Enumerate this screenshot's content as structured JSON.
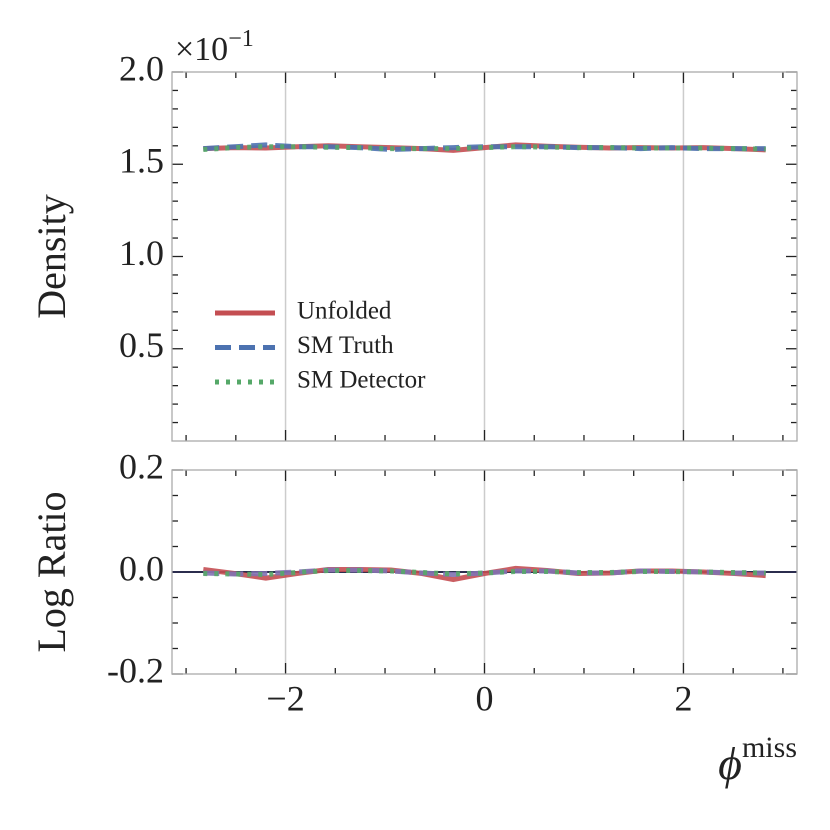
{
  "chart_data": [
    {
      "type": "line",
      "ylabel": "Density",
      "y_offset_text": {
        "base": "×10",
        "exponent": "−1"
      },
      "xlim": [
        -3.1416,
        3.1416
      ],
      "xticks": [
        {
          "value": -2,
          "label": "−2"
        },
        0,
        2
      ],
      "xminorticks": [
        -3,
        -2.5,
        -1.5,
        -1,
        -0.5,
        0.5,
        1,
        1.5,
        2.5,
        3
      ],
      "ylim": [
        0,
        2.0
      ],
      "yticks": [
        0.5,
        {
          "value": 1,
          "label": "1.0"
        },
        1.5,
        {
          "value": 2,
          "label": "2.0"
        }
      ],
      "yminorticks": [
        0.1,
        0.2,
        0.3,
        0.4,
        0.6,
        0.7,
        0.8,
        0.9,
        1.1,
        1.2,
        1.3,
        1.4,
        1.6,
        1.7,
        1.8,
        1.9
      ],
      "grid": "x",
      "legend": "lower left",
      "x": [
        -2.827,
        -2.513,
        -2.199,
        -1.885,
        -1.571,
        -1.257,
        -0.942,
        -0.628,
        -0.314,
        0,
        0.314,
        0.628,
        0.942,
        1.257,
        1.571,
        1.885,
        2.199,
        2.513,
        2.827
      ],
      "series": [
        {
          "name": "Unfolded",
          "color": "#c44e52",
          "style": "solid",
          "values": [
            1.585,
            1.59,
            1.588,
            1.595,
            1.6,
            1.595,
            1.59,
            1.585,
            1.575,
            1.59,
            1.605,
            1.598,
            1.592,
            1.588,
            1.59,
            1.588,
            1.59,
            1.585,
            1.578
          ]
        },
        {
          "name": "SM Truth",
          "color": "#4c72b0",
          "style": "dashed",
          "values": [
            1.585,
            1.595,
            1.605,
            1.595,
            1.595,
            1.59,
            1.58,
            1.585,
            1.59,
            1.595,
            1.595,
            1.595,
            1.59,
            1.59,
            1.585,
            1.59,
            1.585,
            1.585,
            1.585
          ]
        },
        {
          "name": "SM Detector",
          "color": "#55a868",
          "style": "dotted",
          "values": [
            1.58,
            1.59,
            1.595,
            1.595,
            1.592,
            1.59,
            1.585,
            1.585,
            1.585,
            1.59,
            1.595,
            1.593,
            1.59,
            1.59,
            1.588,
            1.588,
            1.588,
            1.585,
            1.582
          ]
        }
      ]
    },
    {
      "type": "line",
      "ylabel": "Log Ratio",
      "xlabel": {
        "symbol": "ϕ",
        "superscript": "miss"
      },
      "xlim": [
        -3.1416,
        3.1416
      ],
      "xticks": [
        {
          "value": -2,
          "label": "−2"
        },
        0,
        2
      ],
      "xminorticks": [
        -3,
        -2.5,
        -1.5,
        -1,
        -0.5,
        0.5,
        1,
        1.5,
        2.5,
        3
      ],
      "ylim": [
        -0.2,
        0.2
      ],
      "yticks": [
        -0.2,
        {
          "value": 0,
          "label": "0.0"
        },
        0.2
      ],
      "yminorticks": [
        -0.15,
        -0.1,
        -0.05,
        0.05,
        0.1,
        0.15
      ],
      "grid": "x",
      "hline": 0,
      "hline_color": "#2b2d4e",
      "x": [
        -2.827,
        -2.513,
        -2.199,
        -1.885,
        -1.571,
        -1.257,
        -0.942,
        -0.628,
        -0.314,
        0,
        0.314,
        0.628,
        0.942,
        1.257,
        1.571,
        1.885,
        2.199,
        2.513,
        2.827
      ],
      "series": [
        {
          "color": "#c44e52",
          "style": "solid",
          "values": [
            0.005,
            -0.003,
            -0.012,
            -0.003,
            0.005,
            0.005,
            0.004,
            -0.003,
            -0.015,
            -0.003,
            0.007,
            0.003,
            -0.003,
            -0.002,
            0.002,
            0.002,
            0,
            -0.003,
            -0.007
          ]
        },
        {
          "color": "#8172b2",
          "style": "dashed",
          "values": [
            -0.002,
            -0.004,
            -0.003,
            0,
            0.004,
            0.004,
            0.002,
            -0.002,
            -0.005,
            -0.002,
            0.002,
            0.002,
            -0.002,
            -0.002,
            0.002,
            0.001,
            0,
            -0.002,
            -0.002
          ]
        },
        {
          "color": "#55a868",
          "style": "dotted",
          "values": [
            -0.003,
            -0.004,
            -0.005,
            -0.001,
            0.003,
            0.003,
            0.002,
            -0.001,
            -0.004,
            -0.002,
            0.001,
            0.001,
            -0.001,
            -0.001,
            0.001,
            0.001,
            0,
            -0.001,
            -0.002
          ]
        }
      ]
    }
  ]
}
